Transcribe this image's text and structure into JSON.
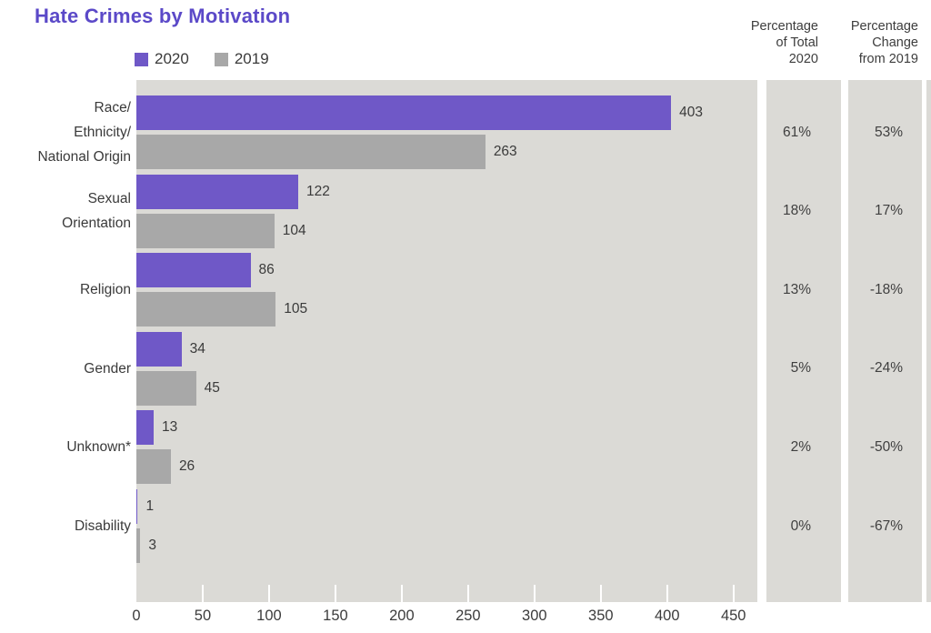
{
  "title": "Hate Crimes by Motivation",
  "legend": [
    {
      "label": "2020",
      "color": "#6f58c7"
    },
    {
      "label": "2019",
      "color": "#a8a8a8"
    }
  ],
  "columns": {
    "pct_total_header": "Percentage\nof Total\n2020",
    "pct_change_header": "Percentage\nChange\nfrom 2019"
  },
  "colors": {
    "title": "#5b49c8",
    "bar_2020": "#6f58c7",
    "bar_2019": "#a8a8a8",
    "panel_background": "#dbdad6",
    "text": "#3a3a3a"
  },
  "chart_data": {
    "type": "bar",
    "orientation": "horizontal",
    "title": "Hate Crimes by Motivation",
    "categories": [
      "Race/\nEthnicity/\nNational Origin",
      "Sexual\nOrientation",
      "Religion",
      "Gender",
      "Unknown*",
      "Disability"
    ],
    "series": [
      {
        "name": "2020",
        "color": "#6f58c7",
        "values": [
          403,
          122,
          86,
          34,
          13,
          1
        ]
      },
      {
        "name": "2019",
        "color": "#a8a8a8",
        "values": [
          263,
          104,
          105,
          45,
          26,
          3
        ]
      }
    ],
    "pct_total_2020": [
      "61%",
      "18%",
      "13%",
      "5%",
      "2%",
      "0%"
    ],
    "pct_change_from_2019": [
      "53%",
      "17%",
      "-18%",
      "-24%",
      "-50%",
      "-67%"
    ],
    "x_ticks": [
      0,
      50,
      100,
      150,
      200,
      250,
      300,
      350,
      400,
      450
    ],
    "xlim": [
      0,
      468
    ],
    "grid": false,
    "legend_position": "top-left"
  }
}
